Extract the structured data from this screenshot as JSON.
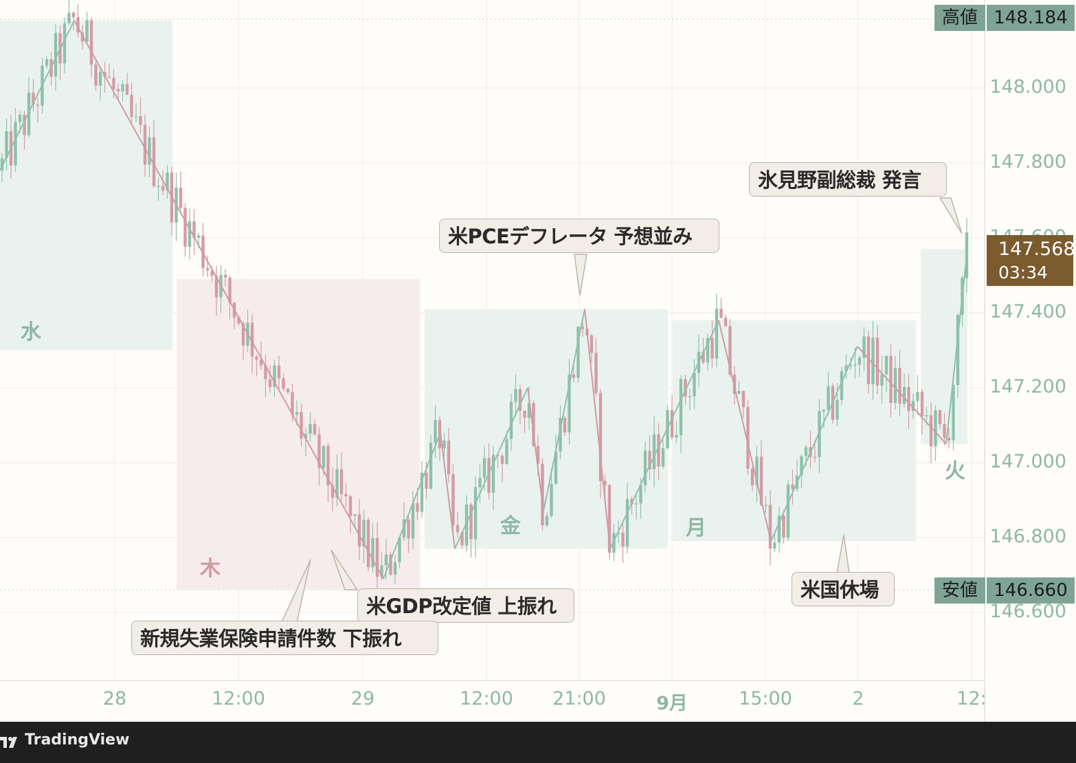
{
  "chart_data": {
    "type": "candlestick",
    "ylim": [
      146.43,
      148.23
    ],
    "y_ticks": [
      "148.000",
      "147.800",
      "147.600",
      "147.400",
      "147.200",
      "147.000",
      "146.800",
      "146.600"
    ],
    "x_ticks": [
      {
        "label": "28",
        "bold": false
      },
      {
        "label": "12:00",
        "bold": false
      },
      {
        "label": "29",
        "bold": false
      },
      {
        "label": "12:00",
        "bold": false
      },
      {
        "label": "21:00",
        "bold": false
      },
      {
        "label": "9月",
        "bold": true
      },
      {
        "label": "15:00",
        "bold": false
      },
      {
        "label": "2",
        "bold": false
      },
      {
        "label": "12:",
        "bold": false
      }
    ],
    "high": {
      "label": "高値",
      "value": "148.184"
    },
    "low": {
      "label": "安値",
      "value": "146.660"
    },
    "current": {
      "price": "147.568",
      "countdown": "03:34"
    },
    "day_labels": [
      "水",
      "木",
      "金",
      "月",
      "火"
    ],
    "annotations": [
      "氷見野副総裁 発言",
      "米PCEデフレータ 予想並み",
      "米GDP改定値 上振れ",
      "新規失業保険申請件数 下振れ",
      "米国休場"
    ],
    "zigzag": [
      {
        "price": 147.78,
        "color": "green"
      },
      {
        "price": 148.18,
        "color": "green"
      },
      {
        "price": 146.69,
        "color": "red"
      },
      {
        "price": 147.08,
        "color": "green"
      },
      {
        "price": 146.77,
        "color": "red"
      },
      {
        "price": 147.2,
        "color": "green"
      },
      {
        "price": 146.87,
        "color": "red"
      },
      {
        "price": 147.41,
        "color": "green"
      },
      {
        "price": 146.77,
        "color": "red"
      },
      {
        "price": 147.38,
        "color": "green"
      },
      {
        "price": 146.79,
        "color": "red"
      },
      {
        "price": 147.31,
        "color": "green"
      },
      {
        "price": 147.05,
        "color": "red"
      },
      {
        "price": 147.57,
        "color": "green"
      }
    ],
    "colors": {
      "up": "#8fc0ac",
      "down": "#d39ca4",
      "green_zone": "#eaf2ef",
      "red_zone": "#f6ecec",
      "axis_text": "#8fb7a6",
      "tag_bg": "#7fa497",
      "current_bg": "#7b5a2e"
    }
  },
  "footer": {
    "brand": "TradingView"
  }
}
